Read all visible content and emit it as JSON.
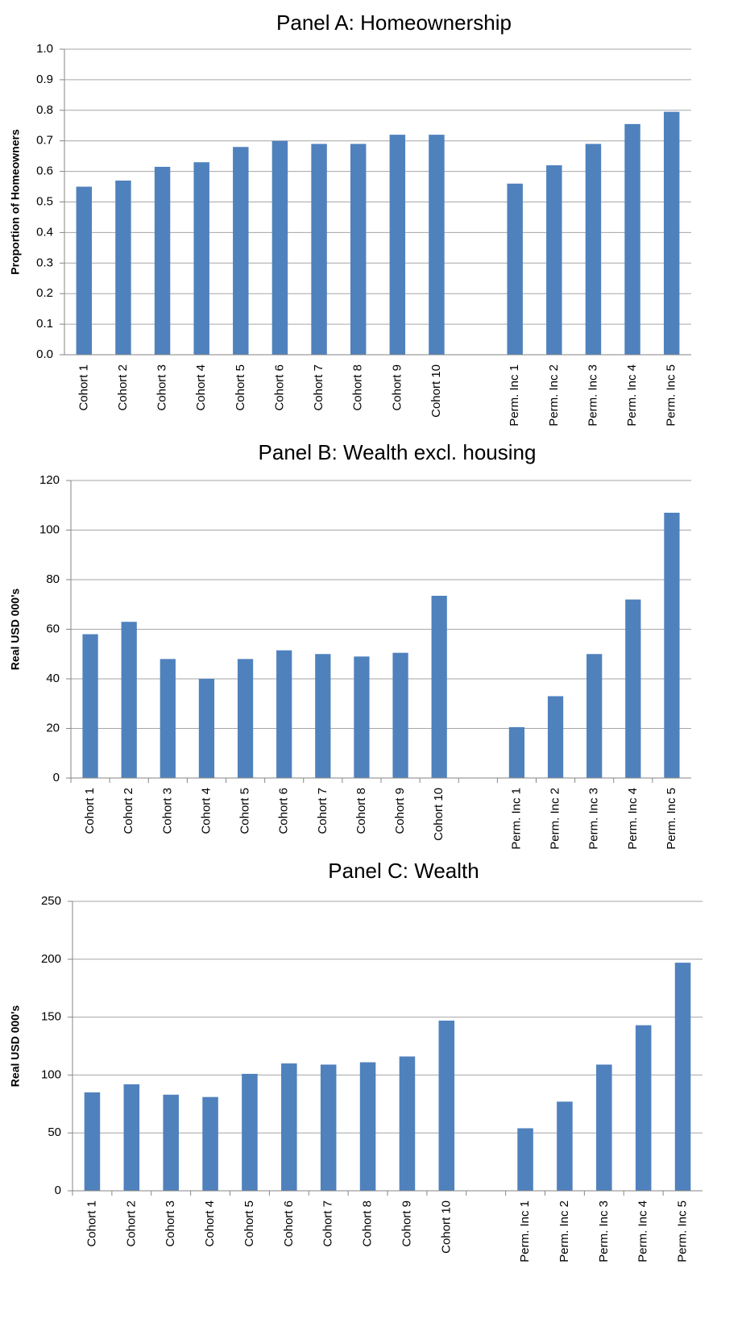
{
  "chart_data": [
    {
      "type": "bar",
      "title": "Panel A: Homeownership",
      "y_label": "Proportion of Homeowners",
      "color": "#4f81bd",
      "grid": true,
      "categories": [
        "Cohort 1",
        "Cohort 2",
        "Cohort 3",
        "Cohort 4",
        "Cohort 5",
        "Cohort 6",
        "Cohort 7",
        "Cohort 8",
        "Cohort 9",
        "Cohort 10",
        null,
        "Perm. Inc 1",
        "Perm. Inc 2",
        "Perm. Inc 3",
        "Perm. Inc 4",
        "Perm. Inc 5"
      ],
      "values": [
        0.55,
        0.57,
        0.615,
        0.63,
        0.68,
        0.7,
        0.69,
        0.69,
        0.72,
        0.72,
        null,
        0.56,
        0.62,
        0.69,
        0.755,
        0.795
      ],
      "ylim": [
        0,
        1
      ],
      "yticks": [
        {
          "value": 0,
          "label": "0.0"
        },
        0.1,
        0.2,
        0.3,
        0.4,
        0.5,
        0.6,
        0.7,
        0.8,
        0.9,
        {
          "value": 1,
          "label": "1.0"
        }
      ]
    },
    {
      "type": "bar",
      "title": "Panel B: Wealth excl. housing",
      "y_label": "Real USD 000's",
      "color": "#4f81bd",
      "grid": true,
      "categories": [
        "Cohort 1",
        "Cohort 2",
        "Cohort 3",
        "Cohort 4",
        "Cohort 5",
        "Cohort 6",
        "Cohort 7",
        "Cohort 8",
        "Cohort 9",
        "Cohort 10",
        null,
        "Perm. Inc 1",
        "Perm. Inc 2",
        "Perm. Inc 3",
        "Perm. Inc 4",
        "Perm. Inc 5"
      ],
      "values": [
        58,
        63,
        48,
        40,
        48,
        51.5,
        50,
        49,
        50.5,
        73.5,
        null,
        20.5,
        33,
        50,
        72,
        107
      ],
      "ylim": [
        0,
        120
      ],
      "yticks": [
        0,
        20,
        40,
        60,
        80,
        100,
        120
      ]
    },
    {
      "type": "bar",
      "title": "Panel C: Wealth",
      "y_label": "Real USD 000's",
      "color": "#4f81bd",
      "grid": true,
      "categories": [
        "Cohort 1",
        "Cohort 2",
        "Cohort 3",
        "Cohort 4",
        "Cohort 5",
        "Cohort 6",
        "Cohort 7",
        "Cohort 8",
        "Cohort 9",
        "Cohort 10",
        null,
        "Perm. Inc 1",
        "Perm. Inc 2",
        "Perm. Inc 3",
        "Perm. Inc 4",
        "Perm. Inc 5"
      ],
      "values": [
        85,
        92,
        83,
        81,
        101,
        110,
        109,
        111,
        116,
        147,
        null,
        54,
        77,
        109,
        143,
        197
      ],
      "ylim": [
        0,
        250
      ],
      "yticks": [
        0,
        50,
        100,
        150,
        200,
        250
      ]
    }
  ]
}
